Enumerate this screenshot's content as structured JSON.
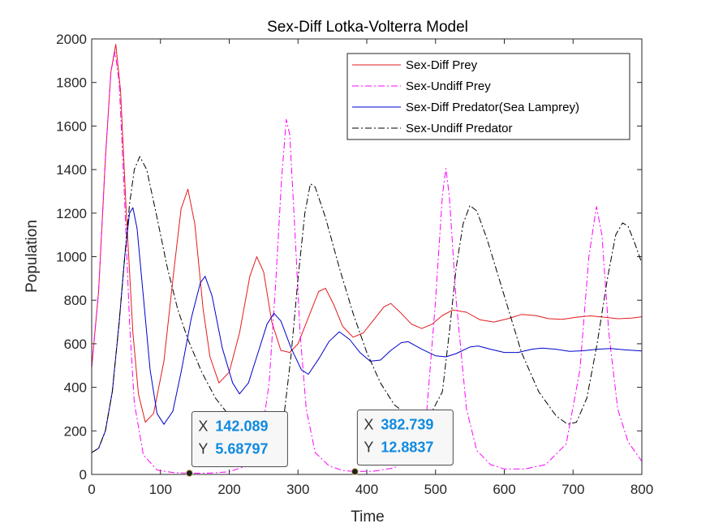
{
  "chart_data": {
    "type": "line",
    "title": "Sex-Diff Lotka-Volterra Model",
    "xlabel": "Time",
    "ylabel": "Population",
    "xlim": [
      0,
      800
    ],
    "ylim": [
      0,
      2000
    ],
    "xticks": [
      0,
      100,
      200,
      300,
      400,
      500,
      600,
      700,
      800
    ],
    "yticks": [
      0,
      200,
      400,
      600,
      800,
      1000,
      1200,
      1400,
      1600,
      1800,
      2000
    ],
    "grid": false,
    "legend_position": "top-right",
    "series": [
      {
        "name": "Sex-Diff Prey",
        "color": "#e41a1c",
        "style": "solid",
        "points": [
          [
            0,
            490
          ],
          [
            10,
            840
          ],
          [
            20,
            1450
          ],
          [
            28,
            1850
          ],
          [
            35,
            1975
          ],
          [
            42,
            1760
          ],
          [
            50,
            1220
          ],
          [
            60,
            650
          ],
          [
            68,
            370
          ],
          [
            78,
            240
          ],
          [
            90,
            280
          ],
          [
            105,
            520
          ],
          [
            120,
            950
          ],
          [
            130,
            1220
          ],
          [
            140,
            1310
          ],
          [
            150,
            1150
          ],
          [
            162,
            760
          ],
          [
            172,
            540
          ],
          [
            185,
            420
          ],
          [
            200,
            470
          ],
          [
            215,
            650
          ],
          [
            230,
            910
          ],
          [
            240,
            1000
          ],
          [
            250,
            930
          ],
          [
            262,
            700
          ],
          [
            275,
            570
          ],
          [
            288,
            560
          ],
          [
            300,
            600
          ],
          [
            315,
            720
          ],
          [
            330,
            840
          ],
          [
            340,
            855
          ],
          [
            352,
            780
          ],
          [
            365,
            680
          ],
          [
            380,
            630
          ],
          [
            395,
            650
          ],
          [
            410,
            710
          ],
          [
            425,
            770
          ],
          [
            435,
            785
          ],
          [
            450,
            740
          ],
          [
            465,
            690
          ],
          [
            480,
            670
          ],
          [
            495,
            690
          ],
          [
            510,
            730
          ],
          [
            525,
            755
          ],
          [
            545,
            745
          ],
          [
            565,
            710
          ],
          [
            585,
            700
          ],
          [
            605,
            715
          ],
          [
            625,
            735
          ],
          [
            645,
            730
          ],
          [
            665,
            715
          ],
          [
            685,
            712
          ],
          [
            705,
            722
          ],
          [
            725,
            728
          ],
          [
            745,
            722
          ],
          [
            765,
            715
          ],
          [
            785,
            718
          ],
          [
            800,
            724
          ]
        ]
      },
      {
        "name": "Sex-Undiff Prey",
        "color": "#ff00ff",
        "style": "dash-dot",
        "points": [
          [
            0,
            490
          ],
          [
            10,
            840
          ],
          [
            20,
            1450
          ],
          [
            28,
            1850
          ],
          [
            34,
            1940
          ],
          [
            40,
            1800
          ],
          [
            48,
            1250
          ],
          [
            55,
            700
          ],
          [
            62,
            330
          ],
          [
            75,
            90
          ],
          [
            95,
            20
          ],
          [
            120,
            8
          ],
          [
            142,
            5.68797
          ],
          [
            170,
            6
          ],
          [
            200,
            12
          ],
          [
            225,
            40
          ],
          [
            245,
            130
          ],
          [
            258,
            420
          ],
          [
            268,
            900
          ],
          [
            276,
            1350
          ],
          [
            283,
            1630
          ],
          [
            288,
            1560
          ],
          [
            295,
            1150
          ],
          [
            303,
            650
          ],
          [
            312,
            300
          ],
          [
            325,
            100
          ],
          [
            345,
            40
          ],
          [
            365,
            18
          ],
          [
            382.739,
            12.8837
          ],
          [
            410,
            15
          ],
          [
            440,
            30
          ],
          [
            470,
            90
          ],
          [
            487,
            280
          ],
          [
            500,
            800
          ],
          [
            510,
            1280
          ],
          [
            515,
            1405
          ],
          [
            520,
            1280
          ],
          [
            530,
            800
          ],
          [
            545,
            300
          ],
          [
            560,
            110
          ],
          [
            580,
            45
          ],
          [
            600,
            25
          ],
          [
            630,
            25
          ],
          [
            660,
            45
          ],
          [
            690,
            140
          ],
          [
            710,
            480
          ],
          [
            723,
            1000
          ],
          [
            734,
            1230
          ],
          [
            742,
            1100
          ],
          [
            752,
            650
          ],
          [
            765,
            300
          ],
          [
            780,
            150
          ],
          [
            800,
            60
          ]
        ]
      },
      {
        "name": "Sex-Diff Predator(Sea Lamprey)",
        "color": "#0000cc",
        "style": "solid",
        "points": [
          [
            0,
            100
          ],
          [
            10,
            120
          ],
          [
            20,
            200
          ],
          [
            30,
            380
          ],
          [
            40,
            700
          ],
          [
            48,
            1000
          ],
          [
            55,
            1200
          ],
          [
            60,
            1225
          ],
          [
            66,
            1130
          ],
          [
            75,
            820
          ],
          [
            85,
            480
          ],
          [
            95,
            280
          ],
          [
            105,
            230
          ],
          [
            118,
            290
          ],
          [
            130,
            470
          ],
          [
            145,
            720
          ],
          [
            158,
            880
          ],
          [
            165,
            910
          ],
          [
            175,
            820
          ],
          [
            190,
            580
          ],
          [
            205,
            420
          ],
          [
            215,
            370
          ],
          [
            228,
            420
          ],
          [
            240,
            540
          ],
          [
            255,
            690
          ],
          [
            265,
            740
          ],
          [
            275,
            705
          ],
          [
            290,
            580
          ],
          [
            305,
            480
          ],
          [
            315,
            460
          ],
          [
            330,
            530
          ],
          [
            345,
            610
          ],
          [
            360,
            655
          ],
          [
            375,
            620
          ],
          [
            390,
            560
          ],
          [
            405,
            520
          ],
          [
            420,
            525
          ],
          [
            435,
            570
          ],
          [
            450,
            605
          ],
          [
            460,
            610
          ],
          [
            480,
            575
          ],
          [
            500,
            545
          ],
          [
            515,
            540
          ],
          [
            530,
            555
          ],
          [
            550,
            585
          ],
          [
            562,
            590
          ],
          [
            580,
            575
          ],
          [
            600,
            560
          ],
          [
            620,
            560
          ],
          [
            640,
            575
          ],
          [
            655,
            580
          ],
          [
            675,
            575
          ],
          [
            695,
            565
          ],
          [
            715,
            568
          ],
          [
            735,
            575
          ],
          [
            755,
            578
          ],
          [
            775,
            572
          ],
          [
            800,
            567
          ]
        ]
      },
      {
        "name": "Sex-Undiff Predator",
        "color": "#000000",
        "style": "dash-dot",
        "points": [
          [
            0,
            100
          ],
          [
            10,
            120
          ],
          [
            20,
            200
          ],
          [
            30,
            380
          ],
          [
            40,
            700
          ],
          [
            48,
            1000
          ],
          [
            55,
            1240
          ],
          [
            62,
            1400
          ],
          [
            70,
            1460
          ],
          [
            80,
            1400
          ],
          [
            95,
            1180
          ],
          [
            110,
            950
          ],
          [
            125,
            760
          ],
          [
            140,
            620
          ],
          [
            160,
            470
          ],
          [
            180,
            350
          ],
          [
            200,
            270
          ],
          [
            225,
            200
          ],
          [
            245,
            165
          ],
          [
            265,
            170
          ],
          [
            280,
            280
          ],
          [
            290,
            550
          ],
          [
            300,
            900
          ],
          [
            310,
            1200
          ],
          [
            318,
            1335
          ],
          [
            325,
            1320
          ],
          [
            340,
            1180
          ],
          [
            360,
            950
          ],
          [
            380,
            740
          ],
          [
            400,
            560
          ],
          [
            420,
            420
          ],
          [
            440,
            320
          ],
          [
            465,
            260
          ],
          [
            490,
            260
          ],
          [
            510,
            380
          ],
          [
            520,
            650
          ],
          [
            530,
            950
          ],
          [
            540,
            1150
          ],
          [
            550,
            1235
          ],
          [
            560,
            1210
          ],
          [
            575,
            1080
          ],
          [
            600,
            820
          ],
          [
            625,
            560
          ],
          [
            650,
            380
          ],
          [
            675,
            270
          ],
          [
            692,
            230
          ],
          [
            705,
            240
          ],
          [
            720,
            350
          ],
          [
            735,
            600
          ],
          [
            750,
            900
          ],
          [
            762,
            1100
          ],
          [
            772,
            1155
          ],
          [
            780,
            1140
          ],
          [
            790,
            1060
          ],
          [
            800,
            970
          ]
        ]
      }
    ],
    "datatips": [
      {
        "x_label": "X",
        "x": "142.089",
        "y_label": "Y",
        "y": "5.68797",
        "x_value": 142.089,
        "y_value": 5.68797
      },
      {
        "x_label": "X",
        "x": "382.739",
        "y_label": "Y",
        "y": "12.8837",
        "x_value": 382.739,
        "y_value": 12.8837
      }
    ],
    "datatip_value_color": "#0f8ae0"
  }
}
